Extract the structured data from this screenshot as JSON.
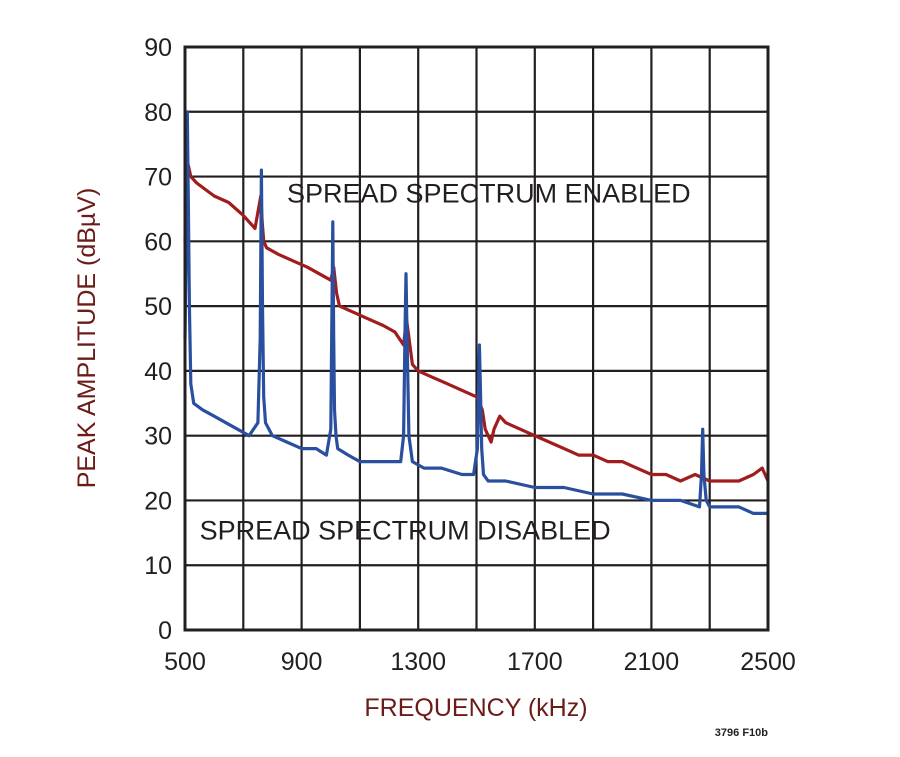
{
  "chart_data": {
    "type": "line",
    "xlabel": "FREQUENCY (kHz)",
    "ylabel": "PEAK AMPLITUDE (dBµV)",
    "xlim": [
      500,
      2500
    ],
    "ylim": [
      0,
      90
    ],
    "xticks": [
      500,
      900,
      1300,
      1700,
      2100,
      2500
    ],
    "yticks": [
      0,
      10,
      20,
      30,
      40,
      50,
      60,
      70,
      80,
      90
    ],
    "xgrid_step": 200,
    "ygrid_step": 10,
    "grid": true,
    "figure_id": "3796 F10b",
    "annotations": [
      {
        "text": "SPREAD SPECTRUM ENABLED",
        "series": "enabled",
        "x": 850,
        "y": 66
      },
      {
        "text": "SPREAD SPECTRUM DISABLED",
        "series": "disabled",
        "x": 550,
        "y": 14
      }
    ],
    "series": [
      {
        "id": "enabled",
        "color": "#a11c1d",
        "x": [
          500,
          505,
          510,
          520,
          540,
          570,
          600,
          650,
          700,
          740,
          760,
          765,
          770,
          780,
          820,
          870,
          920,
          960,
          1000,
          1010,
          1020,
          1030,
          1080,
          1130,
          1180,
          1220,
          1250,
          1260,
          1280,
          1300,
          1350,
          1400,
          1450,
          1500,
          1520,
          1530,
          1550,
          1560,
          1580,
          1600,
          1650,
          1700,
          1750,
          1800,
          1850,
          1900,
          1950,
          2000,
          2050,
          2100,
          2150,
          2200,
          2250,
          2300,
          2350,
          2400,
          2450,
          2480,
          2500
        ],
        "y": [
          60,
          71,
          72,
          70,
          69,
          68,
          67,
          66,
          64,
          62,
          67,
          63,
          60,
          59,
          58,
          57,
          56,
          55,
          54,
          56,
          52,
          50,
          49,
          48,
          47,
          46,
          44,
          48,
          41,
          40,
          39,
          38,
          37,
          36,
          34,
          31,
          29,
          31,
          33,
          32,
          31,
          30,
          29,
          28,
          27,
          27,
          26,
          26,
          25,
          24,
          24,
          23,
          24,
          23,
          23,
          23,
          24,
          25,
          23
        ]
      },
      {
        "id": "disabled",
        "color": "#2a4f9e",
        "x": [
          500,
          505,
          508,
          511,
          515,
          520,
          530,
          560,
          600,
          640,
          680,
          720,
          750,
          758,
          762,
          766,
          770,
          776,
          800,
          850,
          900,
          950,
          985,
          1000,
          1007,
          1010,
          1013,
          1018,
          1024,
          1060,
          1100,
          1150,
          1200,
          1240,
          1250,
          1255,
          1258,
          1262,
          1268,
          1280,
          1320,
          1380,
          1450,
          1490,
          1503,
          1510,
          1514,
          1518,
          1524,
          1540,
          1600,
          1700,
          1800,
          1900,
          2000,
          2100,
          2200,
          2265,
          2272,
          2276,
          2280,
          2288,
          2300,
          2400,
          2450,
          2500
        ],
        "y": [
          45,
          65,
          80,
          68,
          50,
          38,
          35,
          34,
          33,
          32,
          31,
          30,
          32,
          45,
          71,
          50,
          36,
          32,
          30,
          29,
          28,
          28,
          27,
          31,
          63,
          45,
          34,
          30,
          28,
          27,
          26,
          26,
          26,
          26,
          30,
          47,
          55,
          45,
          30,
          26,
          25,
          25,
          24,
          24,
          28,
          44,
          36,
          28,
          24,
          23,
          23,
          22,
          22,
          21,
          21,
          20,
          20,
          19,
          24,
          31,
          24,
          20,
          19,
          19,
          18,
          18
        ]
      }
    ]
  }
}
